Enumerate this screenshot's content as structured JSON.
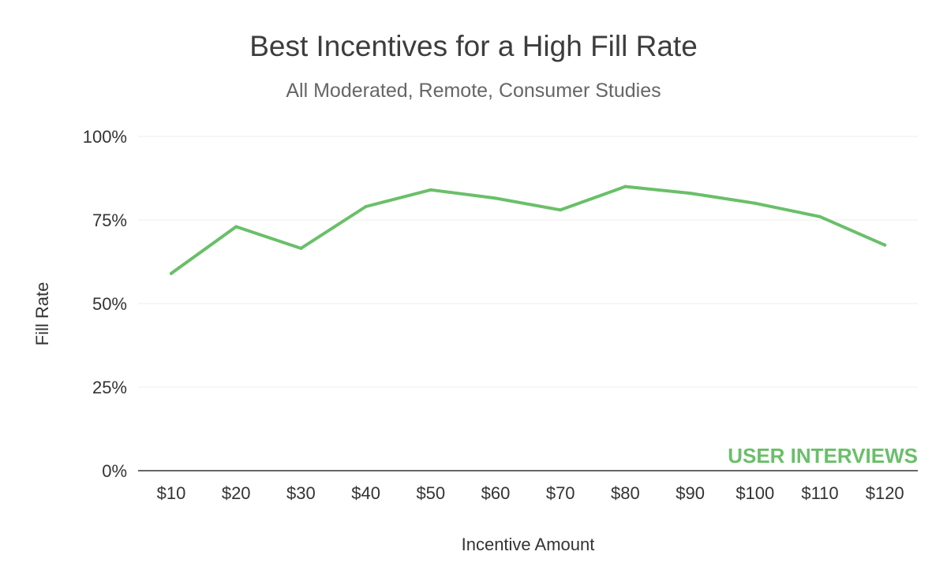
{
  "chart_data": {
    "type": "line",
    "title": "Best Incentives for a High Fill Rate",
    "subtitle": "All Moderated, Remote, Consumer Studies",
    "xlabel": "Incentive Amount",
    "ylabel": "Fill Rate",
    "categories": [
      "$10",
      "$20",
      "$30",
      "$40",
      "$50",
      "$60",
      "$70",
      "$80",
      "$90",
      "$100",
      "$110",
      "$120"
    ],
    "series": [
      {
        "values": [
          0.59,
          0.73,
          0.665,
          0.79,
          0.84,
          0.815,
          0.78,
          0.85,
          0.83,
          0.8,
          0.76,
          0.675
        ],
        "color": "#6abf69"
      }
    ],
    "ylim": [
      0,
      1
    ],
    "yticks": [
      0,
      0.25,
      0.5,
      0.75,
      1
    ],
    "ytick_labels": [
      "0%",
      "25%",
      "50%",
      "75%",
      "100%"
    ],
    "grid": true
  },
  "watermark": {
    "text": "USER INTERVIEWS",
    "color": "#6abf69"
  }
}
